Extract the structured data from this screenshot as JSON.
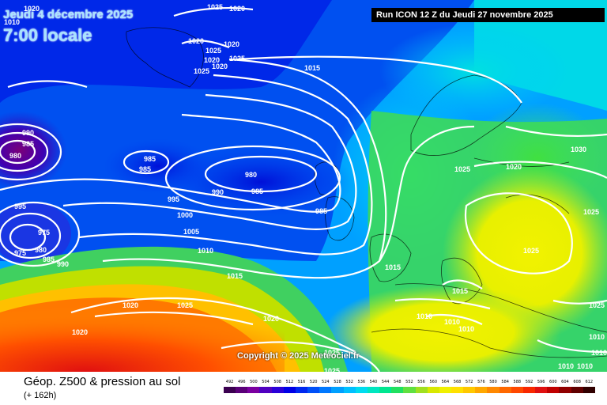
{
  "header": {
    "date": "Jeudi 4 décembre 2025",
    "time": "7:00 locale",
    "run": "Run ICON 12 Z du Jeudi 27 novembre 2025"
  },
  "copyright": "Copyright © 2025 Meteociel.fr",
  "footer": {
    "title": "Géop. Z500 & pression au sol",
    "subtitle": "(+ 162h)"
  },
  "legend": {
    "values": [
      "492",
      "496",
      "500",
      "504",
      "508",
      "512",
      "516",
      "520",
      "524",
      "528",
      "532",
      "536",
      "540",
      "544",
      "548",
      "552",
      "556",
      "560",
      "564",
      "568",
      "572",
      "576",
      "580",
      "584",
      "588",
      "592",
      "596",
      "600",
      "604",
      "608",
      "612"
    ],
    "colors": [
      "#3b0050",
      "#5a0078",
      "#7a00a0",
      "#5000c0",
      "#2a00d8",
      "#0000e6",
      "#0028f0",
      "#0050f8",
      "#0078ff",
      "#00a0ff",
      "#00c0ff",
      "#00dcf0",
      "#00e6c0",
      "#00e690",
      "#20e060",
      "#60e040",
      "#a0e020",
      "#d8e800",
      "#f0f000",
      "#ffe000",
      "#ffc800",
      "#ffa800",
      "#ff8800",
      "#ff6800",
      "#ff4800",
      "#f82800",
      "#e01010",
      "#c00000",
      "#900000",
      "#600000",
      "#300000"
    ]
  },
  "isobars": [
    {
      "text": "1020"
    },
    {
      "text": "1025"
    },
    {
      "text": "1020"
    },
    {
      "text": "1010"
    },
    {
      "text": "1025"
    },
    {
      "text": "1020"
    },
    {
      "text": "1025"
    },
    {
      "text": "1020"
    },
    {
      "text": "1020"
    },
    {
      "text": "1015"
    },
    {
      "text": "1020"
    },
    {
      "text": "1025"
    },
    {
      "text": "990"
    },
    {
      "text": "985"
    },
    {
      "text": "980"
    },
    {
      "text": "995"
    },
    {
      "text": "975"
    },
    {
      "text": "975"
    },
    {
      "text": "980"
    },
    {
      "text": "985"
    },
    {
      "text": "990"
    },
    {
      "text": "985"
    },
    {
      "text": "985"
    },
    {
      "text": "980"
    },
    {
      "text": "985"
    },
    {
      "text": "990"
    },
    {
      "text": "995"
    },
    {
      "text": "1000"
    },
    {
      "text": "1005"
    },
    {
      "text": "1010"
    },
    {
      "text": "1015"
    },
    {
      "text": "985"
    },
    {
      "text": "1015"
    },
    {
      "text": "1020"
    },
    {
      "text": "1025"
    },
    {
      "text": "1020"
    },
    {
      "text": "1020"
    },
    {
      "text": "1025"
    },
    {
      "text": "1025"
    },
    {
      "text": "1025"
    },
    {
      "text": "1010"
    },
    {
      "text": "1010"
    },
    {
      "text": "1010"
    },
    {
      "text": "1015"
    },
    {
      "text": "1020"
    },
    {
      "text": "1025"
    },
    {
      "text": "1030"
    },
    {
      "text": "1025"
    },
    {
      "text": "1025"
    },
    {
      "text": "1010"
    },
    {
      "text": "1010"
    },
    {
      "text": "1010"
    },
    {
      "text": "1010"
    }
  ]
}
